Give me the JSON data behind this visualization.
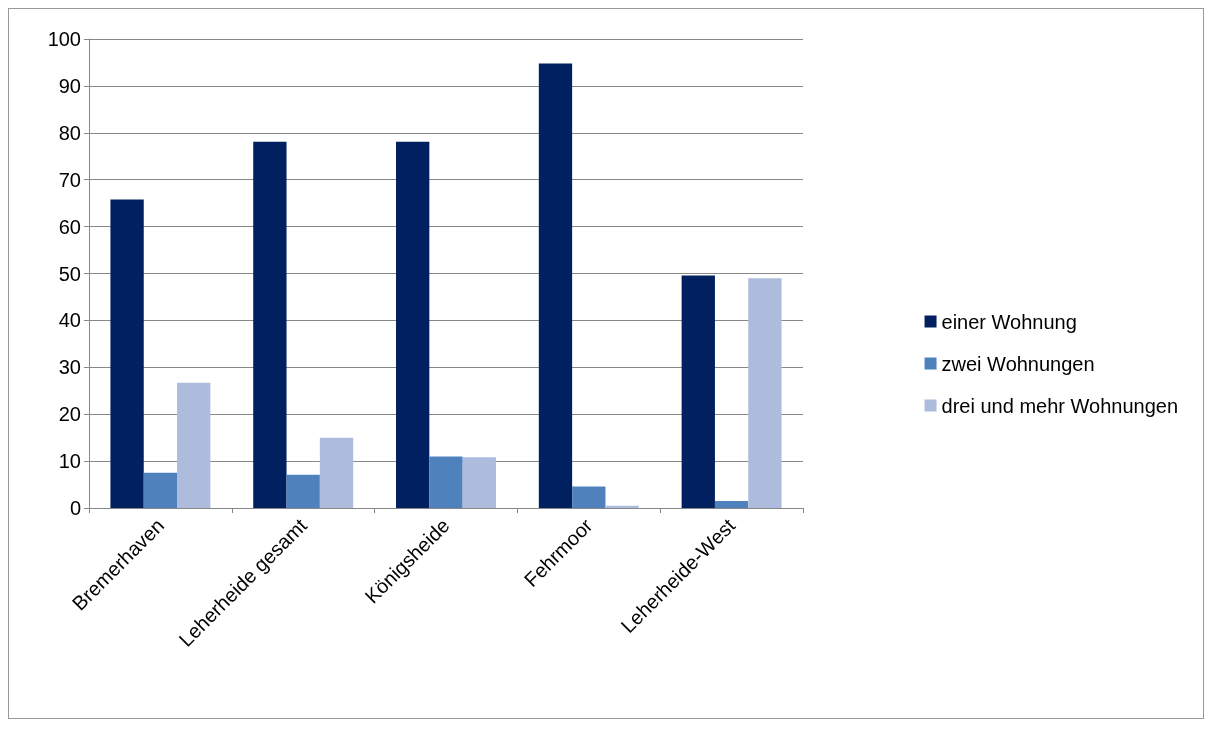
{
  "chart_data": {
    "type": "bar",
    "categories": [
      "Bremerhaven",
      "Leherheide gesamt",
      "Königsheide",
      "Fehrmoor",
      "Leherheide-West"
    ],
    "series": [
      {
        "name": "einer Wohnung",
        "color": "#002060",
        "values": [
          65.8,
          78.1,
          78.1,
          94.8,
          49.6
        ]
      },
      {
        "name": "zwei Wohnungen",
        "color": "#4f81bd",
        "values": [
          7.5,
          7.1,
          11,
          4.6,
          1.5
        ]
      },
      {
        "name": "drei und mehr Wohnungen",
        "color": "#adbcdc",
        "values": [
          26.7,
          15,
          10.8,
          0.5,
          49
        ]
      }
    ],
    "ylim": [
      0,
      100
    ],
    "yticks": [
      0,
      10,
      20,
      30,
      40,
      50,
      60,
      70,
      80,
      90,
      100
    ],
    "grid": "y",
    "legend": "right"
  }
}
